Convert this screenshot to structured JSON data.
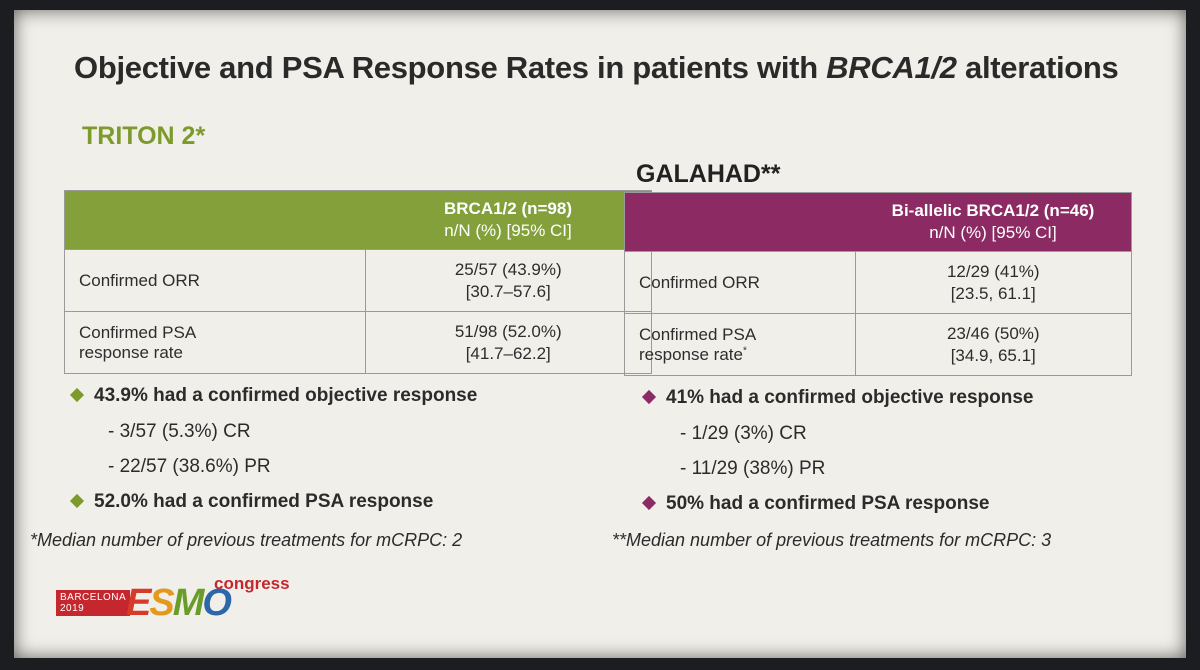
{
  "slide": {
    "title_prefix": "Objective and PSA Response Rates in patients with ",
    "title_italic": "BRCA1/2",
    "title_suffix": " alterations"
  },
  "triton": {
    "name": "TRITON 2*",
    "header_line1": "BRCA1/2 (n=98)",
    "header_line2": "n/N (%) [95% CI]",
    "rows": [
      {
        "label_line1": "Confirmed ORR",
        "label_line2": "",
        "value_line1": "25/57 (43.9%)",
        "value_line2": "[30.7–57.6]"
      },
      {
        "label_line1": "Confirmed PSA",
        "label_line2": "response rate",
        "value_line1": "51/98 (52.0%)",
        "value_line2": "[41.7–62.2]"
      }
    ],
    "bullet1": "43.9% had a confirmed objective response",
    "sub1": "- 3/57 (5.3%) CR",
    "sub2": "- 22/57 (38.6%) PR",
    "bullet2": "52.0% had a confirmed PSA response",
    "footnote": "*Median number of previous treatments for mCRPC: 2"
  },
  "galahad": {
    "name": "GALAHAD**",
    "header_line1": "Bi-allelic BRCA1/2 (n=46)",
    "header_line2": "n/N (%) [95% CI]",
    "rows": [
      {
        "label_line1": "Confirmed ORR",
        "label_line2": "",
        "value_line1": "12/29 (41%)",
        "value_line2": "[23.5, 61.1]"
      },
      {
        "label_line1": "Confirmed PSA",
        "label_line2": "response rate",
        "label_sup": "*",
        "value_line1": "23/46 (50%)",
        "value_line2": "[34.9, 65.1]"
      }
    ],
    "bullet1": "41% had a confirmed objective response",
    "sub1": "- 1/29 (3%) CR",
    "sub2": "- 11/29 (38%) PR",
    "bullet2": "50% had a confirmed PSA response",
    "footnote": "**Median number of previous treatments for mCRPC: 3"
  },
  "logo": {
    "city": "BARCELONA",
    "year": "2019",
    "letters": [
      "E",
      "S",
      "M",
      "O"
    ],
    "congress": "congress"
  }
}
